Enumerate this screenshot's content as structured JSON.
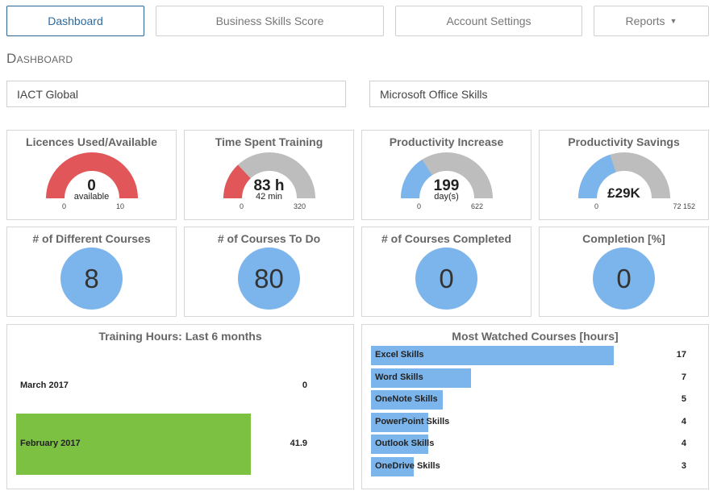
{
  "nav": {
    "tabs": [
      "Dashboard",
      "Business Skills Score",
      "Account Settings",
      "Reports"
    ],
    "active": "Dashboard"
  },
  "page_title": "Dashboard",
  "selectors": {
    "organisation": "IACT Global",
    "course_group": "Microsoft Office Skills"
  },
  "gauges": [
    {
      "title": "Licences Used/Available",
      "value": "0",
      "sub": "available",
      "min": "0",
      "max": "10",
      "fraction": 0,
      "color": "#e15759"
    },
    {
      "title": "Time Spent Training",
      "value": "83 h",
      "sub": "42 min",
      "min": "0",
      "max": "320",
      "fraction": 0.26,
      "color": "#e15759"
    },
    {
      "title": "Productivity Increase",
      "value": "199",
      "sub": "day(s)",
      "min": "0",
      "max": "622",
      "fraction": 0.32,
      "color": "#7cb5ec"
    },
    {
      "title": "Productivity Savings",
      "value": "£29K",
      "sub": "",
      "min": "0",
      "max": "72 152",
      "fraction": 0.4,
      "color": "#7cb5ec"
    }
  ],
  "counters": [
    {
      "title": "# of Different Courses",
      "value": "8"
    },
    {
      "title": "# of Courses To Do",
      "value": "80"
    },
    {
      "title": "# of Courses Completed",
      "value": "0"
    },
    {
      "title": "Completion [%]",
      "value": "0"
    }
  ],
  "colors": {
    "gauge_track": "#bdbdbd",
    "training_bar": "#7dc142",
    "watched_bar": "#7cb5ec"
  },
  "chart_data": [
    {
      "type": "bar",
      "title": "Training Hours: Last 6 months",
      "categories": [
        "March 2017",
        "February 2017"
      ],
      "values": [
        0,
        41.9
      ],
      "value_labels": [
        "0",
        "41.9"
      ],
      "xlim": [
        0,
        62
      ]
    },
    {
      "type": "bar",
      "title": "Most Watched Courses [hours]",
      "categories": [
        "Excel Skills",
        "Word Skills",
        "OneNote Skills",
        "PowerPoint Skills",
        "Outlook Skills",
        "OneDrive Skills"
      ],
      "values": [
        17,
        7,
        5,
        4,
        4,
        3
      ],
      "value_labels": [
        "17",
        "7",
        "5",
        "4",
        "4",
        "3"
      ],
      "xlim": [
        0,
        17.6
      ]
    }
  ]
}
